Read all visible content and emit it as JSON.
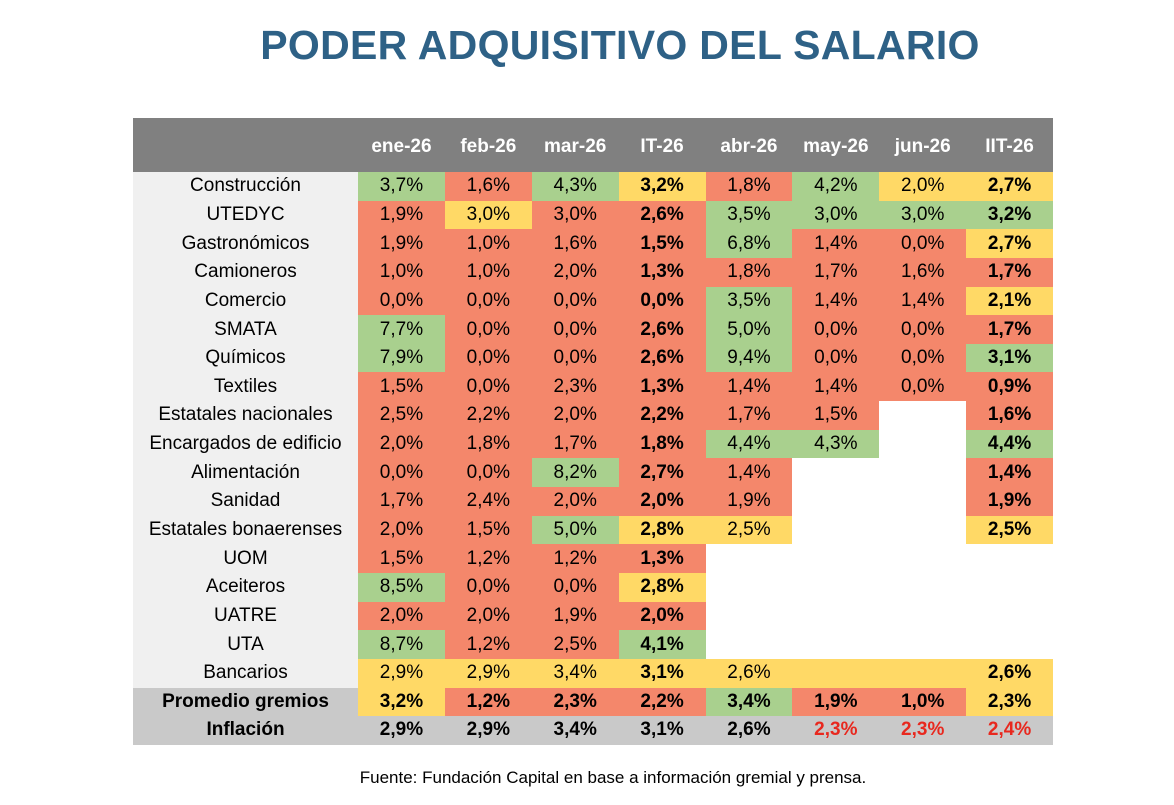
{
  "title": "PODER ADQUISITIVO DEL SALARIO",
  "palette": {
    "red": "#f4876b",
    "green": "#a9d08e",
    "yellow": "#ffd966",
    "white": "#ffffff",
    "gray": "#c9c9c9",
    "black": "#000000",
    "red-text": "#e8281e"
  },
  "table": {
    "header": [
      "ene-26",
      "feb-26",
      "mar-26",
      "IT-26",
      "abr-26",
      "may-26",
      "jun-26",
      "IIT-26"
    ],
    "bold_columns": [
      3,
      7
    ],
    "rows": [
      {
        "label": "Construcción",
        "cells": [
          "3,7%",
          "1,6%",
          "4,3%",
          "3,2%",
          "1,8%",
          "4,2%",
          "2,0%",
          "2,7%"
        ],
        "colors": [
          "green",
          "red",
          "green",
          "yellow",
          "red",
          "green",
          "yellow",
          "yellow"
        ]
      },
      {
        "label": "UTEDYC",
        "cells": [
          "1,9%",
          "3,0%",
          "3,0%",
          "2,6%",
          "3,5%",
          "3,0%",
          "3,0%",
          "3,2%"
        ],
        "colors": [
          "red",
          "yellow",
          "red",
          "red",
          "green",
          "green",
          "green",
          "green"
        ]
      },
      {
        "label": "Gastronómicos",
        "cells": [
          "1,9%",
          "1,0%",
          "1,6%",
          "1,5%",
          "6,8%",
          "1,4%",
          "0,0%",
          "2,7%"
        ],
        "colors": [
          "red",
          "red",
          "red",
          "red",
          "green",
          "red",
          "red",
          "yellow"
        ]
      },
      {
        "label": "Camioneros",
        "cells": [
          "1,0%",
          "1,0%",
          "2,0%",
          "1,3%",
          "1,8%",
          "1,7%",
          "1,6%",
          "1,7%"
        ],
        "colors": [
          "red",
          "red",
          "red",
          "red",
          "red",
          "red",
          "red",
          "red"
        ]
      },
      {
        "label": "Comercio",
        "cells": [
          "0,0%",
          "0,0%",
          "0,0%",
          "0,0%",
          "3,5%",
          "1,4%",
          "1,4%",
          "2,1%"
        ],
        "colors": [
          "red",
          "red",
          "red",
          "red",
          "green",
          "red",
          "red",
          "yellow"
        ]
      },
      {
        "label": "SMATA",
        "cells": [
          "7,7%",
          "0,0%",
          "0,0%",
          "2,6%",
          "5,0%",
          "0,0%",
          "0,0%",
          "1,7%"
        ],
        "colors": [
          "green",
          "red",
          "red",
          "red",
          "green",
          "red",
          "red",
          "red"
        ]
      },
      {
        "label": "Químicos",
        "cells": [
          "7,9%",
          "0,0%",
          "0,0%",
          "2,6%",
          "9,4%",
          "0,0%",
          "0,0%",
          "3,1%"
        ],
        "colors": [
          "green",
          "red",
          "red",
          "red",
          "green",
          "red",
          "red",
          "green"
        ]
      },
      {
        "label": "Textiles",
        "cells": [
          "1,5%",
          "0,0%",
          "2,3%",
          "1,3%",
          "1,4%",
          "1,4%",
          "0,0%",
          "0,9%"
        ],
        "colors": [
          "red",
          "red",
          "red",
          "red",
          "red",
          "red",
          "red",
          "red"
        ]
      },
      {
        "label": "Estatales nacionales",
        "cells": [
          "2,5%",
          "2,2%",
          "2,0%",
          "2,2%",
          "1,7%",
          "1,5%",
          null,
          "1,6%"
        ],
        "colors": [
          "red",
          "red",
          "red",
          "red",
          "red",
          "red",
          "white",
          "red"
        ]
      },
      {
        "label": "Encargados de edificio",
        "cells": [
          "2,0%",
          "1,8%",
          "1,7%",
          "1,8%",
          "4,4%",
          "4,3%",
          null,
          "4,4%"
        ],
        "colors": [
          "red",
          "red",
          "red",
          "red",
          "green",
          "green",
          "white",
          "green"
        ]
      },
      {
        "label": "Alimentación",
        "cells": [
          "0,0%",
          "0,0%",
          "8,2%",
          "2,7%",
          "1,4%",
          null,
          null,
          "1,4%"
        ],
        "colors": [
          "red",
          "red",
          "green",
          "red",
          "red",
          "white",
          "white",
          "red"
        ]
      },
      {
        "label": "Sanidad",
        "cells": [
          "1,7%",
          "2,4%",
          "2,0%",
          "2,0%",
          "1,9%",
          null,
          null,
          "1,9%"
        ],
        "colors": [
          "red",
          "red",
          "red",
          "red",
          "red",
          "white",
          "white",
          "red"
        ]
      },
      {
        "label": "Estatales bonaerenses",
        "cells": [
          "2,0%",
          "1,5%",
          "5,0%",
          "2,8%",
          "2,5%",
          null,
          null,
          "2,5%"
        ],
        "colors": [
          "red",
          "red",
          "green",
          "yellow",
          "yellow",
          "white",
          "white",
          "yellow"
        ]
      },
      {
        "label": "UOM",
        "cells": [
          "1,5%",
          "1,2%",
          "1,2%",
          "1,3%",
          null,
          null,
          null,
          null
        ],
        "colors": [
          "red",
          "red",
          "red",
          "red",
          "white",
          "white",
          "white",
          "white"
        ]
      },
      {
        "label": "Aceiteros",
        "cells": [
          "8,5%",
          "0,0%",
          "0,0%",
          "2,8%",
          null,
          null,
          null,
          null
        ],
        "colors": [
          "green",
          "red",
          "red",
          "yellow",
          "white",
          "white",
          "white",
          "white"
        ]
      },
      {
        "label": "UATRE",
        "cells": [
          "2,0%",
          "2,0%",
          "1,9%",
          "2,0%",
          null,
          null,
          null,
          null
        ],
        "colors": [
          "red",
          "red",
          "red",
          "red",
          "white",
          "white",
          "white",
          "white"
        ]
      },
      {
        "label": "UTA",
        "cells": [
          "8,7%",
          "1,2%",
          "2,5%",
          "4,1%",
          null,
          null,
          null,
          null
        ],
        "colors": [
          "green",
          "red",
          "red",
          "green",
          "white",
          "white",
          "white",
          "white"
        ]
      },
      {
        "label": "Bancarios",
        "cells": [
          "2,9%",
          "2,9%",
          "3,4%",
          "3,1%",
          "2,6%",
          null,
          null,
          "2,6%"
        ],
        "colors": [
          "yellow",
          "yellow",
          "yellow",
          "yellow",
          "yellow",
          "yellow",
          "yellow",
          "yellow"
        ]
      },
      {
        "label": "Promedio gremios",
        "bold": true,
        "label_color": "gray",
        "cells": [
          "3,2%",
          "1,2%",
          "2,3%",
          "2,2%",
          "3,4%",
          "1,9%",
          "1,0%",
          "2,3%"
        ],
        "colors": [
          "yellow",
          "red",
          "red",
          "red",
          "green",
          "red",
          "red",
          "yellow"
        ]
      },
      {
        "label": "Inflación",
        "bold": true,
        "label_color": "gray",
        "cells": [
          "2,9%",
          "2,9%",
          "3,4%",
          "3,1%",
          "2,6%",
          "2,3%",
          "2,3%",
          "2,4%"
        ],
        "colors": [
          "gray",
          "gray",
          "gray",
          "gray",
          "gray",
          "gray",
          "gray",
          "gray"
        ],
        "text_colors": [
          "black",
          "black",
          "black",
          "black",
          "black",
          "red-text",
          "red-text",
          "red-text"
        ]
      }
    ]
  },
  "source": "Fuente: Fundación Capital en base a información gremial y prensa."
}
